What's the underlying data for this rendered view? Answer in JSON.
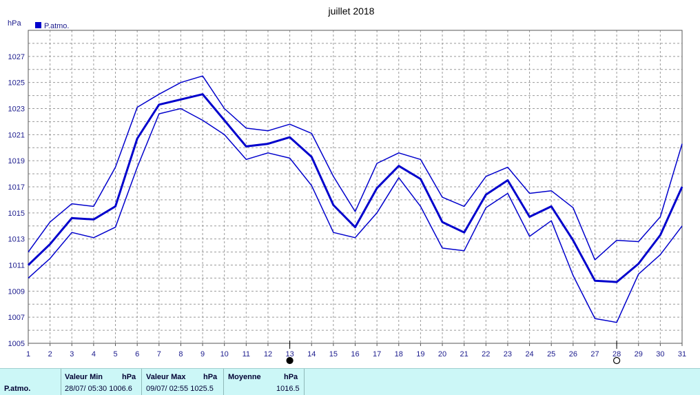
{
  "chart_data": {
    "type": "line",
    "title": "juillet 2018",
    "ylabel": "hPa",
    "legend": [
      {
        "label": "P.atmo.",
        "color": "#0000cc"
      }
    ],
    "legend_position": "top-left",
    "grid": true,
    "ylim": [
      1005,
      1029
    ],
    "yticks": [
      1005,
      1007,
      1009,
      1011,
      1013,
      1015,
      1017,
      1019,
      1021,
      1023,
      1025,
      1027
    ],
    "x": [
      1,
      2,
      3,
      4,
      5,
      6,
      7,
      8,
      9,
      10,
      11,
      12,
      13,
      14,
      15,
      16,
      17,
      18,
      19,
      20,
      21,
      22,
      23,
      24,
      25,
      26,
      27,
      28,
      29,
      30,
      31
    ],
    "series": [
      {
        "role": "max",
        "values": [
          1012.0,
          1014.3,
          1015.7,
          1015.5,
          1018.5,
          1023.1,
          1024.1,
          1025.0,
          1025.5,
          1023.0,
          1021.5,
          1021.3,
          1021.8,
          1021.1,
          1017.8,
          1015.1,
          1018.8,
          1019.6,
          1019.1,
          1016.2,
          1015.5,
          1017.8,
          1018.5,
          1016.5,
          1016.7,
          1015.4,
          1011.4,
          1012.9,
          1012.8,
          1014.7,
          1020.3
        ]
      },
      {
        "role": "mean",
        "values": [
          1011.0,
          1012.6,
          1014.6,
          1014.5,
          1015.5,
          1020.7,
          1023.3,
          1023.7,
          1024.1,
          1022.1,
          1020.1,
          1020.3,
          1020.8,
          1019.3,
          1015.6,
          1013.9,
          1016.9,
          1018.6,
          1017.6,
          1014.3,
          1013.5,
          1016.4,
          1017.5,
          1014.7,
          1015.5,
          1012.9,
          1009.8,
          1009.7,
          1011.1,
          1013.3,
          1017.0
        ]
      },
      {
        "role": "min",
        "values": [
          1010.0,
          1011.5,
          1013.5,
          1013.1,
          1013.9,
          1018.5,
          1022.6,
          1023.0,
          1022.1,
          1021.0,
          1019.1,
          1019.6,
          1019.2,
          1017.1,
          1013.5,
          1013.1,
          1015.0,
          1017.7,
          1015.5,
          1012.3,
          1012.1,
          1015.4,
          1016.5,
          1013.2,
          1014.4,
          1010.2,
          1006.9,
          1006.6,
          1010.3,
          1011.8,
          1014.0
        ]
      }
    ],
    "markers": [
      {
        "day": 13,
        "type": "filled-circle"
      },
      {
        "day": 28,
        "type": "open-circle"
      }
    ],
    "line_color": "#0000cc"
  },
  "stats": {
    "series_label": "P.atmo.",
    "min_header": "Valeur Min",
    "min_unit": "hPa",
    "min_value": "28/07/  05:30 1006.6",
    "max_header": "Valeur Max",
    "max_unit": "hPa",
    "max_value": "09/07/  02:55 1025.5",
    "mean_header": "Moyenne",
    "mean_unit": "hPa",
    "mean_value": "1016.5"
  }
}
